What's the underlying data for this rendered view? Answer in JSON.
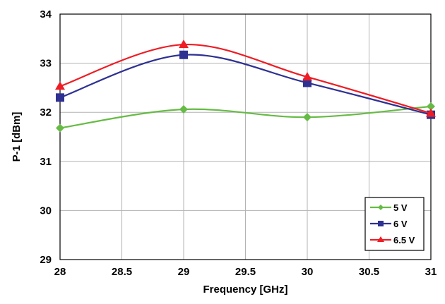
{
  "chart_data": {
    "type": "line",
    "xlabel": "Frequency [GHz]",
    "ylabel": "P-1 [dBm]",
    "xlim": [
      28,
      31
    ],
    "ylim": [
      29,
      34
    ],
    "xticks": [
      28,
      28.5,
      29,
      29.5,
      30,
      30.5,
      31
    ],
    "yticks": [
      29,
      30,
      31,
      32,
      33,
      34
    ],
    "grid": true,
    "legend_position": "bottom-right",
    "series": [
      {
        "name": "5 V",
        "color": "#66bb44",
        "marker": "diamond",
        "x": [
          28,
          29,
          30,
          31
        ],
        "y": [
          31.68,
          32.06,
          31.9,
          32.12
        ]
      },
      {
        "name": "6 V",
        "color": "#2e3192",
        "marker": "square",
        "x": [
          28,
          29,
          30,
          31
        ],
        "y": [
          32.3,
          33.17,
          32.6,
          31.95
        ]
      },
      {
        "name": "6.5 V",
        "color": "#ee1c24",
        "marker": "triangle",
        "x": [
          28,
          29,
          30,
          31
        ],
        "y": [
          32.53,
          33.38,
          32.72,
          31.98
        ]
      }
    ]
  }
}
